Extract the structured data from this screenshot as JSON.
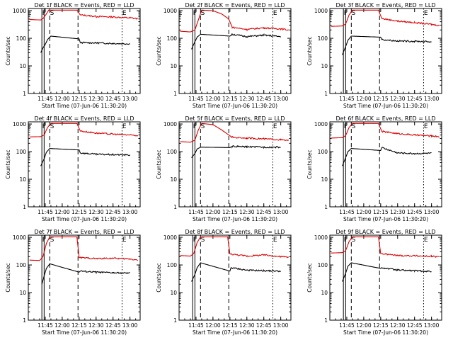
{
  "colors": {
    "events": "#000000",
    "lld": "#dd0000",
    "axes": "#000000",
    "background": "#ffffff"
  },
  "common": {
    "ylabel": "Counts/sec",
    "xlabel": "Start Time (07-Jun-06 11:30:20)",
    "x_ticks": [
      "11:45",
      "12:00",
      "12:15",
      "12:30",
      "12:45",
      "13:00"
    ],
    "y_ticks": [
      "1",
      "10",
      "100",
      "1000"
    ]
  },
  "chart_data": [
    {
      "type": "line",
      "title": "Det 1f BLACK = Events, RED = LLD",
      "yscale": "log",
      "ylim": [
        1,
        1200
      ],
      "markers": [
        {
          "label": "E",
          "line": "none"
        },
        {
          "label": "F",
          "line": "solid"
        },
        {
          "label": "S",
          "line": "dashed"
        },
        {
          "label": "E",
          "line": "dotted"
        }
      ],
      "series": [
        {
          "name": "LLD",
          "x": [
            "11:31",
            "11:41",
            "11:43",
            "11:46",
            "11:48",
            "12:13",
            "12:16",
            "12:30",
            "12:45",
            "13:00",
            "13:07"
          ],
          "y": [
            480,
            460,
            520,
            760,
            1050,
            1050,
            700,
            620,
            590,
            550,
            510
          ]
        },
        {
          "name": "Events",
          "x": [
            "11:41",
            "11:43",
            "11:45",
            "11:47",
            "11:50",
            "12:15",
            "12:16",
            "12:30",
            "12:45",
            "13:00"
          ],
          "y": [
            30,
            45,
            60,
            90,
            120,
            95,
            70,
            68,
            65,
            63
          ]
        }
      ]
    },
    {
      "type": "line",
      "title": "Det 2f BLACK = Events, RED = LLD",
      "yscale": "log",
      "ylim": [
        1,
        1200
      ],
      "markers": [
        {
          "label": "E",
          "line": "none"
        },
        {
          "label": "F",
          "line": "solid"
        },
        {
          "label": "S",
          "line": "dashed"
        },
        {
          "label": "E",
          "line": "dotted"
        }
      ],
      "series": [
        {
          "name": "LLD",
          "x": [
            "11:31",
            "11:40",
            "11:44",
            "11:47",
            "11:50",
            "12:00",
            "12:08",
            "12:14",
            "12:17",
            "12:30",
            "12:45",
            "13:00",
            "13:07"
          ],
          "y": [
            180,
            170,
            200,
            450,
            1050,
            1000,
            750,
            500,
            250,
            210,
            240,
            220,
            200
          ]
        },
        {
          "name": "Events",
          "x": [
            "11:41",
            "11:44",
            "11:46",
            "11:49",
            "12:15",
            "12:17",
            "12:30",
            "12:45",
            "13:00"
          ],
          "y": [
            40,
            75,
            110,
            140,
            120,
            140,
            115,
            130,
            115
          ]
        }
      ]
    },
    {
      "type": "line",
      "title": "Det 3f BLACK = Events, RED = LLD",
      "yscale": "log",
      "ylim": [
        1,
        1200
      ],
      "markers": [
        {
          "label": "E",
          "line": "none"
        },
        {
          "label": "F",
          "line": "solid"
        },
        {
          "label": "S",
          "line": "dashed"
        },
        {
          "label": "E",
          "line": "dotted"
        }
      ],
      "series": [
        {
          "name": "LLD",
          "x": [
            "11:31",
            "11:41",
            "11:44",
            "11:47",
            "11:50",
            "12:13",
            "12:16",
            "12:30",
            "12:45",
            "13:00",
            "13:07"
          ],
          "y": [
            270,
            280,
            330,
            700,
            1050,
            1050,
            520,
            420,
            370,
            320,
            290
          ]
        },
        {
          "name": "Events",
          "x": [
            "11:41",
            "11:44",
            "11:46",
            "11:49",
            "12:15",
            "12:16",
            "12:30",
            "12:45",
            "13:00"
          ],
          "y": [
            25,
            50,
            85,
            120,
            110,
            90,
            80,
            78,
            75
          ]
        }
      ]
    },
    {
      "type": "line",
      "title": "Det 4f BLACK = Events, RED = LLD",
      "yscale": "log",
      "ylim": [
        1,
        1200
      ],
      "markers": [
        {
          "label": "E",
          "line": "none"
        },
        {
          "label": "F",
          "line": "solid"
        },
        {
          "label": "S",
          "line": "dashed"
        },
        {
          "label": "E",
          "line": "dotted"
        }
      ],
      "series": [
        {
          "name": "LLD",
          "x": [
            "11:31",
            "11:41",
            "11:44",
            "11:47",
            "11:50",
            "12:13",
            "12:16",
            "12:30",
            "12:45",
            "13:00",
            "13:07"
          ],
          "y": [
            340,
            350,
            400,
            750,
            1050,
            1050,
            560,
            470,
            430,
            400,
            380
          ]
        },
        {
          "name": "Events",
          "x": [
            "11:41",
            "11:44",
            "11:46",
            "11:49",
            "12:15",
            "12:16",
            "12:30",
            "12:45",
            "13:00"
          ],
          "y": [
            30,
            55,
            95,
            130,
            115,
            90,
            80,
            78,
            75
          ]
        }
      ]
    },
    {
      "type": "line",
      "title": "Det 5f BLACK = Events, RED = LLD",
      "yscale": "log",
      "ylim": [
        1,
        1200
      ],
      "markers": [
        {
          "label": "E",
          "line": "none"
        },
        {
          "label": "F",
          "line": "solid"
        },
        {
          "label": "S",
          "line": "dashed"
        },
        {
          "label": "E",
          "line": "dotted"
        }
      ],
      "series": [
        {
          "name": "LLD",
          "x": [
            "11:31",
            "11:40",
            "11:44",
            "11:47",
            "11:50",
            "12:00",
            "12:08",
            "12:14",
            "12:17",
            "12:30",
            "12:45",
            "13:00",
            "13:07"
          ],
          "y": [
            230,
            220,
            260,
            600,
            1050,
            950,
            600,
            400,
            330,
            310,
            290,
            270,
            250
          ]
        },
        {
          "name": "Events",
          "x": [
            "11:41",
            "11:44",
            "11:46",
            "11:49",
            "12:15",
            "12:17",
            "12:30",
            "12:45",
            "13:00"
          ],
          "y": [
            60,
            85,
            125,
            145,
            140,
            155,
            150,
            145,
            145
          ]
        }
      ]
    },
    {
      "type": "line",
      "title": "Det 6f BLACK = Events, RED = LLD",
      "yscale": "log",
      "ylim": [
        1,
        1200
      ],
      "markers": [
        {
          "label": "E",
          "line": "none"
        },
        {
          "label": "F",
          "line": "solid"
        },
        {
          "label": "S",
          "line": "dashed"
        },
        {
          "label": "E",
          "line": "dotted"
        }
      ],
      "series": [
        {
          "name": "LLD",
          "x": [
            "11:31",
            "11:41",
            "11:44",
            "11:47",
            "11:50",
            "12:13",
            "12:16",
            "12:30",
            "12:45",
            "13:00",
            "13:07"
          ],
          "y": [
            310,
            320,
            380,
            750,
            1050,
            1050,
            540,
            450,
            400,
            370,
            350
          ]
        },
        {
          "name": "Events",
          "x": [
            "11:41",
            "11:44",
            "11:46",
            "11:49",
            "12:15",
            "12:16",
            "12:30",
            "12:45",
            "13:00"
          ],
          "y": [
            30,
            60,
            100,
            130,
            110,
            140,
            90,
            85,
            88
          ]
        }
      ]
    },
    {
      "type": "line",
      "title": "Det 7f BLACK = Events, RED = LLD",
      "yscale": "log",
      "ylim": [
        1,
        1200
      ],
      "markers": [
        {
          "label": "E",
          "line": "none"
        },
        {
          "label": "F",
          "line": "solid"
        },
        {
          "label": "S",
          "line": "dashed"
        },
        {
          "label": "E",
          "line": "dotted"
        }
      ],
      "series": [
        {
          "name": "LLD",
          "x": [
            "11:31",
            "11:40",
            "11:43",
            "11:46",
            "11:49",
            "12:13",
            "12:15",
            "12:30",
            "12:45",
            "13:00",
            "13:07"
          ],
          "y": [
            150,
            145,
            200,
            600,
            1050,
            1050,
            185,
            170,
            175,
            165,
            150
          ]
        },
        {
          "name": "Events",
          "x": [
            "11:42",
            "11:44",
            "11:46",
            "11:49",
            "12:15",
            "12:16",
            "12:30",
            "12:45",
            "13:00"
          ],
          "y": [
            20,
            40,
            75,
            110,
            55,
            60,
            55,
            52,
            50
          ]
        }
      ]
    },
    {
      "type": "line",
      "title": "Det 8f BLACK = Events, RED = LLD",
      "yscale": "log",
      "ylim": [
        1,
        1200
      ],
      "markers": [
        {
          "label": "E",
          "line": "none"
        },
        {
          "label": "F",
          "line": "solid"
        },
        {
          "label": "S",
          "line": "dashed"
        },
        {
          "label": "E",
          "line": "dotted"
        }
      ],
      "series": [
        {
          "name": "LLD",
          "x": [
            "11:31",
            "11:40",
            "11:43",
            "11:46",
            "11:49",
            "12:13",
            "12:15",
            "12:30",
            "12:45",
            "13:00",
            "13:07"
          ],
          "y": [
            220,
            210,
            260,
            650,
            1050,
            1050,
            250,
            210,
            230,
            200,
            190
          ]
        },
        {
          "name": "Events",
          "x": [
            "11:41",
            "11:44",
            "11:46",
            "11:49",
            "12:15",
            "12:16",
            "12:30",
            "12:45",
            "13:00"
          ],
          "y": [
            25,
            45,
            80,
            120,
            60,
            80,
            65,
            62,
            60
          ]
        }
      ]
    },
    {
      "type": "line",
      "title": "Det 9f BLACK = Events, RED = LLD",
      "yscale": "log",
      "ylim": [
        1,
        1200
      ],
      "markers": [
        {
          "label": "E",
          "line": "none"
        },
        {
          "label": "F",
          "line": "solid"
        },
        {
          "label": "S",
          "line": "dashed"
        },
        {
          "label": "E",
          "line": "dotted"
        }
      ],
      "series": [
        {
          "name": "LLD",
          "x": [
            "11:31",
            "11:41",
            "11:44",
            "11:47",
            "11:50",
            "12:13",
            "12:15",
            "12:30",
            "12:45",
            "13:00",
            "13:07"
          ],
          "y": [
            270,
            280,
            330,
            700,
            1050,
            1050,
            260,
            220,
            215,
            205,
            195
          ]
        },
        {
          "name": "Events",
          "x": [
            "11:41",
            "11:44",
            "11:46",
            "11:49",
            "12:15",
            "12:16",
            "12:30",
            "12:45",
            "13:00"
          ],
          "y": [
            25,
            50,
            90,
            120,
            75,
            80,
            65,
            62,
            58
          ]
        }
      ]
    }
  ]
}
